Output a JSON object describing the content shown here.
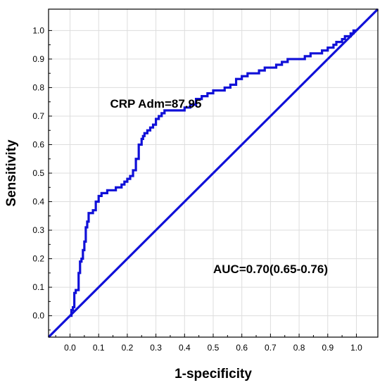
{
  "chart_data": {
    "type": "line",
    "xlabel": "1-specificity",
    "ylabel": "Sensitivity",
    "xlim": [
      -0.075,
      1.075
    ],
    "ylim": [
      -0.075,
      1.075
    ],
    "xticks": [
      "0.0",
      "0.1",
      "0.2",
      "0.3",
      "0.4",
      "0.5",
      "0.6",
      "0.7",
      "0.8",
      "0.9",
      "1.0"
    ],
    "yticks": [
      "0.0",
      "0.1",
      "0.2",
      "0.3",
      "0.4",
      "0.5",
      "0.6",
      "0.7",
      "0.8",
      "0.9",
      "1.0"
    ],
    "grid": true,
    "line_color": "#1010d8",
    "series": [
      {
        "x": [
          0.0,
          0.005,
          0.01,
          0.015,
          0.02,
          0.025,
          0.03,
          0.035,
          0.04,
          0.045,
          0.05,
          0.055,
          0.06,
          0.065,
          0.07,
          0.075,
          0.08,
          0.09,
          0.1,
          0.11,
          0.12,
          0.13,
          0.14,
          0.15,
          0.16,
          0.17,
          0.18,
          0.19,
          0.2,
          0.21,
          0.22,
          0.23,
          0.24,
          0.25,
          0.255,
          0.26,
          0.27,
          0.28,
          0.29,
          0.3,
          0.31,
          0.32,
          0.33,
          0.34,
          0.36,
          0.38,
          0.4,
          0.42,
          0.44,
          0.46,
          0.47,
          0.48,
          0.49,
          0.5,
          0.52,
          0.54,
          0.56,
          0.58,
          0.6,
          0.62,
          0.64,
          0.66,
          0.68,
          0.7,
          0.72,
          0.74,
          0.76,
          0.78,
          0.8,
          0.82,
          0.84,
          0.86,
          0.88,
          0.9,
          0.92,
          0.93,
          0.94,
          0.95,
          0.96,
          0.97,
          0.98,
          0.99,
          1.0
        ],
        "y": [
          0.0,
          0.02,
          0.03,
          0.08,
          0.09,
          0.09,
          0.15,
          0.19,
          0.2,
          0.23,
          0.26,
          0.31,
          0.33,
          0.36,
          0.36,
          0.36,
          0.37,
          0.4,
          0.42,
          0.43,
          0.43,
          0.44,
          0.44,
          0.44,
          0.45,
          0.45,
          0.46,
          0.47,
          0.48,
          0.49,
          0.51,
          0.55,
          0.6,
          0.62,
          0.63,
          0.64,
          0.65,
          0.66,
          0.67,
          0.69,
          0.7,
          0.71,
          0.72,
          0.72,
          0.72,
          0.72,
          0.73,
          0.74,
          0.76,
          0.77,
          0.77,
          0.78,
          0.78,
          0.79,
          0.79,
          0.8,
          0.81,
          0.83,
          0.84,
          0.85,
          0.85,
          0.86,
          0.87,
          0.87,
          0.88,
          0.89,
          0.9,
          0.9,
          0.9,
          0.91,
          0.92,
          0.92,
          0.93,
          0.94,
          0.95,
          0.96,
          0.96,
          0.97,
          0.98,
          0.98,
          0.99,
          1.0,
          1.0
        ]
      },
      {
        "x": [
          -0.075,
          1.075
        ],
        "y": [
          -0.075,
          1.075
        ]
      }
    ],
    "annotations": [
      {
        "text": "CRP Adm=87.95",
        "x": 0.14,
        "y": 0.73
      },
      {
        "text": "AUC=0.70(0.65-0.76)",
        "x": 0.5,
        "y": 0.15
      }
    ]
  }
}
